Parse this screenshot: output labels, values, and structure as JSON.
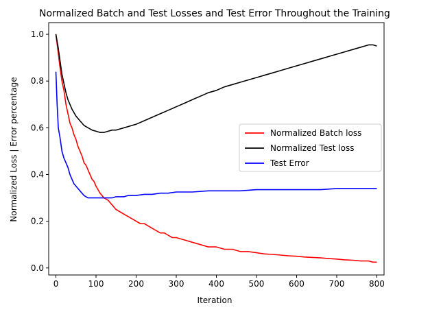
{
  "chart_data": {
    "type": "line",
    "title": "Normalized Batch and Test Losses and Test Error Throughout the Training",
    "xlabel": "Iteration",
    "ylabel": "Normalized Loss | Error percentage",
    "xlim": [
      -18,
      818
    ],
    "ylim": [
      -0.03,
      1.05
    ],
    "xticks": [
      0,
      100,
      200,
      300,
      400,
      500,
      600,
      700,
      800
    ],
    "yticks": [
      0.0,
      0.2,
      0.4,
      0.6,
      0.8,
      1.0
    ],
    "xtick_labels": [
      "0",
      "100",
      "200",
      "300",
      "400",
      "500",
      "600",
      "700",
      "800"
    ],
    "ytick_labels": [
      "0.0",
      "0.2",
      "0.4",
      "0.6",
      "0.8",
      "1.0"
    ],
    "grid": false,
    "legend_position": "center-right",
    "series": [
      {
        "name": "Normalized Batch loss",
        "color": "#ff0000",
        "x": [
          0,
          5,
          10,
          15,
          20,
          25,
          30,
          35,
          40,
          45,
          50,
          55,
          60,
          65,
          70,
          75,
          80,
          85,
          90,
          95,
          100,
          110,
          120,
          130,
          140,
          150,
          160,
          170,
          180,
          190,
          200,
          210,
          220,
          230,
          240,
          250,
          260,
          270,
          280,
          290,
          300,
          320,
          340,
          360,
          380,
          400,
          420,
          440,
          460,
          480,
          500,
          520,
          540,
          560,
          580,
          600,
          620,
          640,
          660,
          680,
          700,
          720,
          740,
          760,
          770,
          780,
          790,
          800
        ],
        "values": [
          1.0,
          0.93,
          0.86,
          0.8,
          0.76,
          0.7,
          0.66,
          0.62,
          0.6,
          0.57,
          0.55,
          0.52,
          0.5,
          0.48,
          0.45,
          0.44,
          0.42,
          0.4,
          0.38,
          0.37,
          0.35,
          0.32,
          0.3,
          0.29,
          0.27,
          0.25,
          0.24,
          0.23,
          0.22,
          0.21,
          0.2,
          0.19,
          0.19,
          0.18,
          0.17,
          0.16,
          0.15,
          0.15,
          0.14,
          0.13,
          0.13,
          0.12,
          0.11,
          0.1,
          0.09,
          0.09,
          0.08,
          0.08,
          0.07,
          0.07,
          0.065,
          0.06,
          0.058,
          0.055,
          0.052,
          0.05,
          0.047,
          0.045,
          0.043,
          0.04,
          0.038,
          0.035,
          0.033,
          0.03,
          0.03,
          0.03,
          0.025,
          0.025
        ]
      },
      {
        "name": "Normalized Test loss",
        "color": "#000000",
        "x": [
          0,
          5,
          10,
          15,
          20,
          25,
          30,
          40,
          50,
          60,
          70,
          80,
          90,
          100,
          110,
          120,
          130,
          140,
          150,
          160,
          170,
          180,
          190,
          200,
          220,
          240,
          260,
          280,
          300,
          320,
          340,
          360,
          380,
          400,
          420,
          440,
          460,
          480,
          500,
          520,
          540,
          560,
          580,
          600,
          620,
          640,
          660,
          680,
          700,
          720,
          740,
          760,
          770,
          780,
          790,
          800
        ],
        "values": [
          1.0,
          0.95,
          0.89,
          0.83,
          0.79,
          0.75,
          0.72,
          0.68,
          0.65,
          0.63,
          0.61,
          0.6,
          0.59,
          0.585,
          0.58,
          0.58,
          0.585,
          0.59,
          0.59,
          0.595,
          0.6,
          0.605,
          0.61,
          0.615,
          0.63,
          0.645,
          0.66,
          0.675,
          0.69,
          0.705,
          0.72,
          0.735,
          0.75,
          0.76,
          0.775,
          0.785,
          0.795,
          0.805,
          0.815,
          0.825,
          0.835,
          0.845,
          0.855,
          0.865,
          0.875,
          0.885,
          0.895,
          0.905,
          0.915,
          0.925,
          0.935,
          0.945,
          0.95,
          0.955,
          0.955,
          0.95
        ]
      },
      {
        "name": "Test Error",
        "color": "#0000ff",
        "x": [
          0,
          3,
          6,
          10,
          15,
          20,
          25,
          30,
          35,
          40,
          45,
          50,
          55,
          60,
          65,
          70,
          75,
          80,
          90,
          100,
          110,
          120,
          130,
          140,
          150,
          160,
          170,
          180,
          200,
          220,
          240,
          260,
          280,
          300,
          340,
          380,
          420,
          460,
          500,
          540,
          580,
          620,
          660,
          700,
          740,
          780,
          800
        ],
        "values": [
          0.84,
          0.7,
          0.6,
          0.56,
          0.5,
          0.47,
          0.45,
          0.43,
          0.4,
          0.38,
          0.36,
          0.35,
          0.34,
          0.33,
          0.32,
          0.31,
          0.305,
          0.3,
          0.3,
          0.3,
          0.3,
          0.3,
          0.3,
          0.3,
          0.305,
          0.305,
          0.305,
          0.31,
          0.31,
          0.315,
          0.315,
          0.32,
          0.32,
          0.325,
          0.325,
          0.33,
          0.33,
          0.33,
          0.335,
          0.335,
          0.335,
          0.335,
          0.335,
          0.34,
          0.34,
          0.34,
          0.34
        ]
      }
    ]
  }
}
